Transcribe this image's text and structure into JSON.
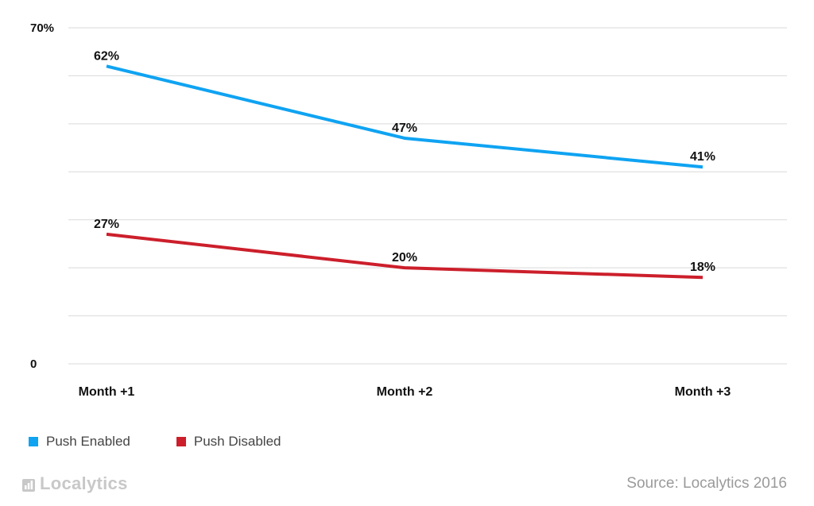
{
  "chart_data": {
    "type": "line",
    "categories": [
      "Month +1",
      "Month +2",
      "Month +3"
    ],
    "series": [
      {
        "name": "Push Enabled",
        "color": "#0fa3f2",
        "values": [
          62,
          47,
          41
        ],
        "labels": [
          "62%",
          "47%",
          "41%"
        ]
      },
      {
        "name": "Push Disabled",
        "color": "#cc1f2b",
        "values": [
          27,
          20,
          18
        ],
        "labels": [
          "27%",
          "20%",
          "18%"
        ]
      }
    ],
    "ylim": [
      0,
      70
    ],
    "gridlines": [
      0,
      10,
      20,
      30,
      40,
      50,
      60,
      70
    ],
    "y_tick_labels": [
      {
        "value": 70,
        "label": "70%"
      },
      {
        "value": 0,
        "label": "0"
      }
    ],
    "grid": true,
    "legend": "bottom-left"
  },
  "branding": {
    "logo_icon": "bar-chart-icon",
    "logo_text": "Localytics",
    "source": "Source: Localytics 2016"
  }
}
